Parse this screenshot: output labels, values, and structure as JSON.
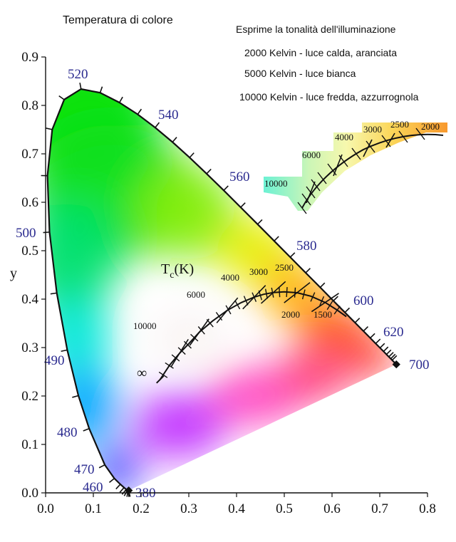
{
  "chart_data": {
    "type": "chromaticity-diagram",
    "title": "Temperatura di colore",
    "ylabel": "y",
    "xlim": [
      0.0,
      0.8
    ],
    "ylim": [
      0.0,
      0.9
    ],
    "x_ticks": [
      "0.0",
      "0.1",
      "0.2",
      "0.3",
      "0.4",
      "0.5",
      "0.6",
      "0.7",
      "0.8"
    ],
    "y_ticks": [
      "0.0",
      "0.1",
      "0.2",
      "0.3",
      "0.4",
      "0.5",
      "0.6",
      "0.7",
      "0.8",
      "0.9"
    ],
    "spectral_locus_labels": [
      {
        "label": "380",
        "x": 0.1741,
        "y": 0.005
      },
      {
        "label": "460",
        "x": 0.144,
        "y": 0.0297
      },
      {
        "label": "470",
        "x": 0.1241,
        "y": 0.0578
      },
      {
        "label": "480",
        "x": 0.0913,
        "y": 0.1327
      },
      {
        "label": "490",
        "x": 0.0454,
        "y": 0.295
      },
      {
        "label": "500",
        "x": 0.0082,
        "y": 0.5384
      },
      {
        "label": "520",
        "x": 0.0743,
        "y": 0.8338
      },
      {
        "label": "540",
        "x": 0.2296,
        "y": 0.7543
      },
      {
        "label": "560",
        "x": 0.3731,
        "y": 0.6245
      },
      {
        "label": "580",
        "x": 0.5125,
        "y": 0.4866
      },
      {
        "label": "600",
        "x": 0.627,
        "y": 0.3725
      },
      {
        "label": "620",
        "x": 0.6915,
        "y": 0.3083
      },
      {
        "label": "700",
        "x": 0.7347,
        "y": 0.2653
      }
    ],
    "planckian_locus": {
      "label_main": "T",
      "label_sub": "c",
      "label_unit": "(K)",
      "infinity_label": "∞",
      "points": [
        {
          "T": "∞",
          "x": 0.2399,
          "y": 0.2341
        },
        {
          "T": "10000",
          "x": 0.2807,
          "y": 0.2884
        },
        {
          "T": "6000",
          "x": 0.3221,
          "y": 0.3318
        },
        {
          "T": "4000",
          "x": 0.3805,
          "y": 0.3768
        },
        {
          "T": "3000",
          "x": 0.4369,
          "y": 0.4041
        },
        {
          "T": "2500",
          "x": 0.477,
          "y": 0.4137
        },
        {
          "T": "2000",
          "x": 0.5267,
          "y": 0.4133
        },
        {
          "T": "1500",
          "x": 0.5857,
          "y": 0.3931
        }
      ]
    },
    "annotations": [
      "Esprime la tonalità dell'illuminazione",
      "2000 Kelvin - luce calda, aranciata",
      "5000 Kelvin - luce bianca",
      "10000 Kelvin - luce fredda, azzurrognola"
    ],
    "inset_labels": [
      "10000",
      "6000",
      "4000",
      "3000",
      "2500",
      "2000"
    ],
    "colors": {
      "axis": "#111111",
      "wavelength_labels": "#2a2a8f"
    }
  }
}
